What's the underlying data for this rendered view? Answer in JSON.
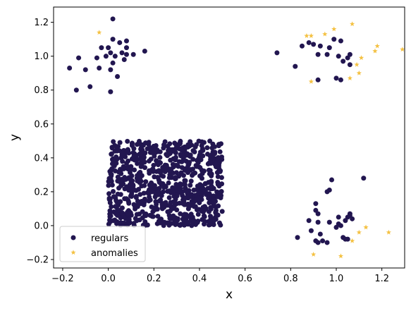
{
  "chart_data": {
    "type": "scatter",
    "title": "",
    "xlabel": "x",
    "ylabel": "y",
    "xlim": [
      -0.24,
      1.3
    ],
    "ylim": [
      -0.25,
      1.29
    ],
    "xticks": [
      "−0.2",
      "0.0",
      "0.2",
      "0.4",
      "0.6",
      "0.8",
      "1.0",
      "1.2"
    ],
    "yticks": [
      "−0.2",
      "0.0",
      "0.2",
      "0.4",
      "0.6",
      "0.8",
      "1.0",
      "1.2"
    ],
    "xtick_values": [
      -0.2,
      0.0,
      0.2,
      0.4,
      0.6,
      0.8,
      1.0,
      1.2
    ],
    "ytick_values": [
      -0.2,
      0.0,
      0.2,
      0.4,
      0.6,
      0.8,
      1.0,
      1.2
    ],
    "grid": false,
    "legend_position": "lower-left",
    "colors": {
      "regulars": "#221650",
      "anomalies": "#f4c142"
    },
    "series": [
      {
        "name": "regulars",
        "marker": "circle",
        "color": "#221650",
        "points": [
          [
            0.02,
            1.22
          ],
          [
            0.02,
            1.1
          ],
          [
            0.05,
            1.08
          ],
          [
            0.08,
            1.09
          ],
          [
            0.08,
            1.05
          ],
          [
            -0.03,
            1.05
          ],
          [
            0.0,
            1.05
          ],
          [
            0.06,
            1.02
          ],
          [
            0.01,
            1.02
          ],
          [
            0.08,
            1.01
          ],
          [
            0.11,
            1.01
          ],
          [
            0.16,
            1.03
          ],
          [
            -0.01,
            1.0
          ],
          [
            0.03,
            1.0
          ],
          [
            -0.05,
            0.99
          ],
          [
            0.07,
            0.98
          ],
          [
            0.02,
            0.96
          ],
          [
            -0.13,
            0.99
          ],
          [
            -0.17,
            0.93
          ],
          [
            -0.1,
            0.92
          ],
          [
            -0.04,
            0.93
          ],
          [
            0.01,
            0.92
          ],
          [
            0.04,
            0.88
          ],
          [
            -0.08,
            0.82
          ],
          [
            -0.14,
            0.8
          ],
          [
            0.01,
            0.79
          ],
          [
            0.74,
            1.02
          ],
          [
            0.82,
            0.94
          ],
          [
            0.85,
            1.06
          ],
          [
            0.88,
            1.08
          ],
          [
            0.9,
            1.07
          ],
          [
            0.93,
            1.06
          ],
          [
            0.97,
            1.05
          ],
          [
            0.99,
            1.1
          ],
          [
            1.02,
            1.09
          ],
          [
            0.92,
            1.01
          ],
          [
            0.96,
            1.01
          ],
          [
            1.01,
            1.0
          ],
          [
            1.03,
            0.97
          ],
          [
            1.05,
            0.99
          ],
          [
            1.06,
            1.01
          ],
          [
            1.06,
            0.95
          ],
          [
            1.0,
            0.87
          ],
          [
            1.02,
            0.86
          ],
          [
            0.92,
            0.86
          ],
          [
            0.98,
            0.27
          ],
          [
            0.97,
            0.21
          ],
          [
            0.96,
            0.2
          ],
          [
            1.12,
            0.28
          ],
          [
            0.91,
            0.13
          ],
          [
            0.91,
            0.09
          ],
          [
            0.92,
            0.07
          ],
          [
            0.88,
            0.03
          ],
          [
            0.92,
            0.02
          ],
          [
            0.97,
            0.02
          ],
          [
            1.01,
            0.05
          ],
          [
            1.06,
            0.07
          ],
          [
            1.05,
            0.05
          ],
          [
            1.06,
            0.06
          ],
          [
            1.04,
            0.03
          ],
          [
            1.07,
            0.04
          ],
          [
            1.01,
            0.01
          ],
          [
            1.0,
            -0.01
          ],
          [
            1.02,
            0.0
          ],
          [
            0.89,
            -0.03
          ],
          [
            0.93,
            -0.05
          ],
          [
            0.83,
            -0.07
          ],
          [
            0.94,
            -0.09
          ],
          [
            0.92,
            -0.1
          ],
          [
            0.91,
            -0.09
          ],
          [
            0.96,
            -0.1
          ],
          [
            1.04,
            -0.08
          ],
          [
            1.05,
            -0.08
          ],
          [
            1.03,
            -0.07
          ]
        ],
        "cluster": {
          "x": [
            0.0,
            0.5
          ],
          "y": [
            0.0,
            0.5
          ],
          "count": 800
        }
      },
      {
        "name": "anomalies",
        "marker": "star",
        "color": "#f4c142",
        "points": [
          [
            -0.04,
            1.14
          ],
          [
            0.87,
            1.12
          ],
          [
            0.89,
            1.12
          ],
          [
            0.95,
            1.13
          ],
          [
            0.99,
            1.16
          ],
          [
            1.07,
            1.19
          ],
          [
            1.18,
            1.06
          ],
          [
            1.17,
            1.03
          ],
          [
            1.29,
            1.04
          ],
          [
            1.11,
            0.99
          ],
          [
            1.09,
            0.95
          ],
          [
            1.1,
            0.9
          ],
          [
            1.06,
            0.87
          ],
          [
            0.89,
            0.85
          ],
          [
            1.13,
            -0.01
          ],
          [
            1.1,
            -0.04
          ],
          [
            1.23,
            -0.04
          ],
          [
            1.07,
            -0.09
          ],
          [
            0.9,
            -0.17
          ],
          [
            1.02,
            -0.18
          ]
        ]
      }
    ]
  }
}
